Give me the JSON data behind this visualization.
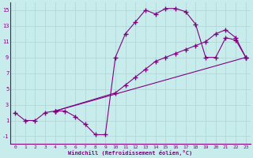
{
  "xlabel": "Windchill (Refroidissement éolien,°C)",
  "background_color": "#c8ecec",
  "line_color": "#800080",
  "grid_color": "#b0d8d8",
  "xlim": [
    -0.5,
    23.5
  ],
  "ylim": [
    -2,
    16
  ],
  "xticks": [
    0,
    1,
    2,
    3,
    4,
    5,
    6,
    7,
    8,
    9,
    10,
    11,
    12,
    13,
    14,
    15,
    16,
    17,
    18,
    19,
    20,
    21,
    22,
    23
  ],
  "yticks": [
    -1,
    1,
    3,
    5,
    7,
    9,
    11,
    13,
    15
  ],
  "curve1_x": [
    0,
    1,
    2,
    3,
    4,
    5,
    6,
    7,
    8,
    9,
    10,
    11,
    12,
    13,
    14,
    15,
    16,
    17,
    18,
    19,
    20,
    21,
    22,
    23
  ],
  "curve1_y": [
    2.0,
    1.0,
    1.0,
    2.0,
    2.2,
    2.2,
    1.5,
    0.5,
    -0.8,
    -0.8,
    9.0,
    12.0,
    13.5,
    15.0,
    14.5,
    15.2,
    15.2,
    14.8,
    13.2,
    9.0,
    9.0,
    11.5,
    11.2,
    9.0
  ],
  "curve2_x": [
    4,
    23
  ],
  "curve2_y": [
    2.2,
    9.0
  ],
  "curve3_x": [
    4,
    10,
    11,
    12,
    13,
    14,
    15,
    16,
    17,
    18,
    19,
    20,
    21,
    22,
    23
  ],
  "curve3_y": [
    2.2,
    4.5,
    5.5,
    6.5,
    7.5,
    8.5,
    9.0,
    9.5,
    10.0,
    10.5,
    11.0,
    12.0,
    12.5,
    11.5,
    9.0
  ]
}
